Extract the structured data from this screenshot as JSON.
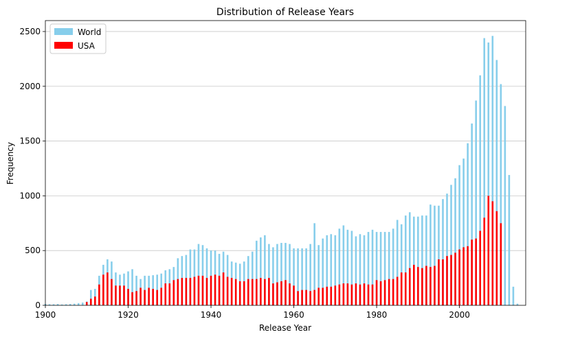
{
  "chart_data": {
    "type": "bar",
    "title": "Distribution of Release Years",
    "xlabel": "Release Year",
    "ylabel": "Frequency",
    "xlim": [
      1900,
      2016
    ],
    "ylim": [
      0,
      2600
    ],
    "x_ticks": [
      1900,
      1920,
      1940,
      1960,
      1980,
      2000
    ],
    "y_ticks": [
      0,
      500,
      1000,
      1500,
      2000,
      2500
    ],
    "grid": "horizontal",
    "legend_position": "top-left",
    "series": [
      {
        "name": "World",
        "color": "#87CEEB",
        "x": [
          1900,
          1901,
          1902,
          1903,
          1904,
          1905,
          1906,
          1907,
          1908,
          1909,
          1910,
          1911,
          1912,
          1913,
          1914,
          1915,
          1916,
          1917,
          1918,
          1919,
          1920,
          1921,
          1922,
          1923,
          1924,
          1925,
          1926,
          1927,
          1928,
          1929,
          1930,
          1931,
          1932,
          1933,
          1934,
          1935,
          1936,
          1937,
          1938,
          1939,
          1940,
          1941,
          1942,
          1943,
          1944,
          1945,
          1946,
          1947,
          1948,
          1949,
          1950,
          1951,
          1952,
          1953,
          1954,
          1955,
          1956,
          1957,
          1958,
          1959,
          1960,
          1961,
          1962,
          1963,
          1964,
          1965,
          1966,
          1967,
          1968,
          1969,
          1970,
          1971,
          1972,
          1973,
          1974,
          1975,
          1976,
          1977,
          1978,
          1979,
          1980,
          1981,
          1982,
          1983,
          1984,
          1985,
          1986,
          1987,
          1988,
          1989,
          1990,
          1991,
          1992,
          1993,
          1994,
          1995,
          1996,
          1997,
          1998,
          1999,
          2000,
          2001,
          2002,
          2003,
          2004,
          2005,
          2006,
          2007,
          2008,
          2009,
          2010,
          2011,
          2012,
          2013,
          2014
        ],
        "values": [
          12,
          10,
          10,
          12,
          8,
          10,
          12,
          15,
          20,
          25,
          35,
          140,
          150,
          270,
          370,
          420,
          400,
          300,
          280,
          290,
          310,
          330,
          270,
          240,
          270,
          270,
          275,
          280,
          290,
          320,
          330,
          350,
          430,
          450,
          460,
          510,
          510,
          560,
          550,
          520,
          500,
          500,
          470,
          490,
          460,
          400,
          390,
          380,
          400,
          450,
          490,
          590,
          620,
          640,
          560,
          530,
          560,
          570,
          570,
          560,
          520,
          520,
          520,
          520,
          560,
          750,
          550,
          610,
          640,
          650,
          640,
          700,
          730,
          690,
          680,
          630,
          650,
          640,
          670,
          690,
          670,
          670,
          670,
          670,
          700,
          780,
          740,
          820,
          850,
          810,
          810,
          820,
          820,
          920,
          910,
          910,
          970,
          1020,
          1100,
          1160,
          1280,
          1340,
          1480,
          1660,
          1870,
          2100,
          2440,
          2400,
          2460,
          2240,
          2020,
          1820,
          1190,
          170,
          15
        ]
      },
      {
        "name": "USA",
        "color": "#FF0000",
        "x": [
          1910,
          1911,
          1912,
          1913,
          1914,
          1915,
          1916,
          1917,
          1918,
          1919,
          1920,
          1921,
          1922,
          1923,
          1924,
          1925,
          1926,
          1927,
          1928,
          1929,
          1930,
          1931,
          1932,
          1933,
          1934,
          1935,
          1936,
          1937,
          1938,
          1939,
          1940,
          1941,
          1942,
          1943,
          1944,
          1945,
          1946,
          1947,
          1948,
          1949,
          1950,
          1951,
          1952,
          1953,
          1954,
          1955,
          1956,
          1957,
          1958,
          1959,
          1960,
          1961,
          1962,
          1963,
          1964,
          1965,
          1966,
          1967,
          1968,
          1969,
          1970,
          1971,
          1972,
          1973,
          1974,
          1975,
          1976,
          1977,
          1978,
          1979,
          1980,
          1981,
          1982,
          1983,
          1984,
          1985,
          1986,
          1987,
          1988,
          1989,
          1990,
          1991,
          1992,
          1993,
          1994,
          1995,
          1996,
          1997,
          1998,
          1999,
          2000,
          2001,
          2002,
          2003,
          2004,
          2005,
          2006,
          2007,
          2008,
          2009,
          2010
        ],
        "values": [
          30,
          60,
          80,
          190,
          280,
          300,
          240,
          180,
          180,
          180,
          150,
          120,
          130,
          160,
          140,
          160,
          150,
          140,
          160,
          200,
          200,
          230,
          240,
          250,
          250,
          250,
          260,
          270,
          270,
          250,
          270,
          280,
          270,
          300,
          260,
          250,
          240,
          220,
          220,
          240,
          240,
          240,
          250,
          240,
          250,
          200,
          210,
          220,
          230,
          200,
          180,
          130,
          140,
          140,
          130,
          140,
          160,
          160,
          170,
          170,
          180,
          190,
          200,
          200,
          190,
          200,
          190,
          200,
          190,
          190,
          230,
          220,
          230,
          240,
          240,
          260,
          300,
          300,
          340,
          370,
          350,
          340,
          360,
          350,
          360,
          420,
          420,
          450,
          460,
          480,
          510,
          530,
          540,
          600,
          610,
          680,
          800,
          1000,
          950,
          860,
          750
        ]
      }
    ]
  }
}
